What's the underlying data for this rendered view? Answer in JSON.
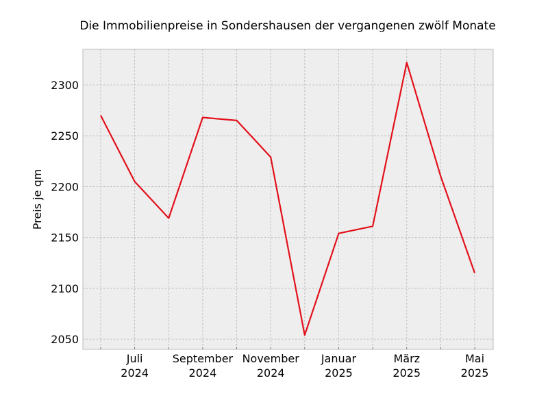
{
  "chart_data": {
    "type": "line",
    "title": "Die Immobilienpreise in Sondershausen der vergangenen zwölf Monate",
    "xlabel": "",
    "ylabel": "Preis je qm",
    "x": [
      "2024-06",
      "2024-07",
      "2024-08",
      "2024-09",
      "2024-10",
      "2024-11",
      "2024-12",
      "2025-01",
      "2025-02",
      "2025-03",
      "2025-04",
      "2025-05"
    ],
    "series": [
      {
        "values": [
          2270,
          2205,
          2169,
          2268,
          2265,
          2229,
          2054,
          2154,
          2161,
          2322,
          2210,
          2115
        ]
      }
    ],
    "x_ticks": [
      {
        "x": "2024-07",
        "line1": "Juli",
        "line2": "2024"
      },
      {
        "x": "2024-09",
        "line1": "September",
        "line2": "2024"
      },
      {
        "x": "2024-11",
        "line1": "November",
        "line2": "2024"
      },
      {
        "x": "2025-01",
        "line1": "Januar",
        "line2": "2025"
      },
      {
        "x": "2025-03",
        "line1": "März",
        "line2": "2025"
      },
      {
        "x": "2025-05",
        "line1": "Mai",
        "line2": "2025"
      }
    ],
    "y_ticks": [
      2050,
      2100,
      2150,
      2200,
      2250,
      2300
    ],
    "ylim": [
      2040,
      2335
    ],
    "grid": true,
    "line_color": "#e3101a",
    "background_color": "#eeeeee"
  }
}
